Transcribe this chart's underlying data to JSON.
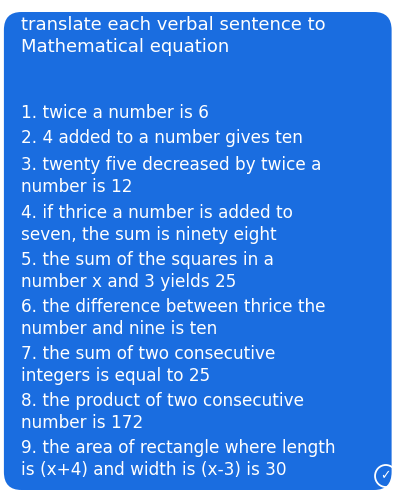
{
  "bg_color": "#1a6de0",
  "text_color": "#FFFFFF",
  "fig_bg": "#FFFFFF",
  "title": "translate each verbal sentence to\nMathematical equation",
  "items": [
    "1. twice a number is 6",
    "2. 4 added to a number gives ten",
    "3. twenty five decreased by twice a\nnumber is 12",
    "4. if thrice a number is added to\nseven, the sum is ninety eight",
    "5. the sum of the squares in a\nnumber x and 3 yields 25",
    "6. the difference between thrice the\nnumber and nine is ten",
    "7. the sum of two consecutive\nintegers is equal to 25",
    "8. the product of two consecutive\nnumber is 172",
    "9. the area of rectangle where length\nis (x+4) and width is (x-3) is 30"
  ],
  "title_fontsize": 13.0,
  "item_fontsize": 12.2,
  "figsize": [
    4.14,
    4.94
  ],
  "dpi": 100,
  "check_color": "#FFFFFF",
  "check_size": 9
}
